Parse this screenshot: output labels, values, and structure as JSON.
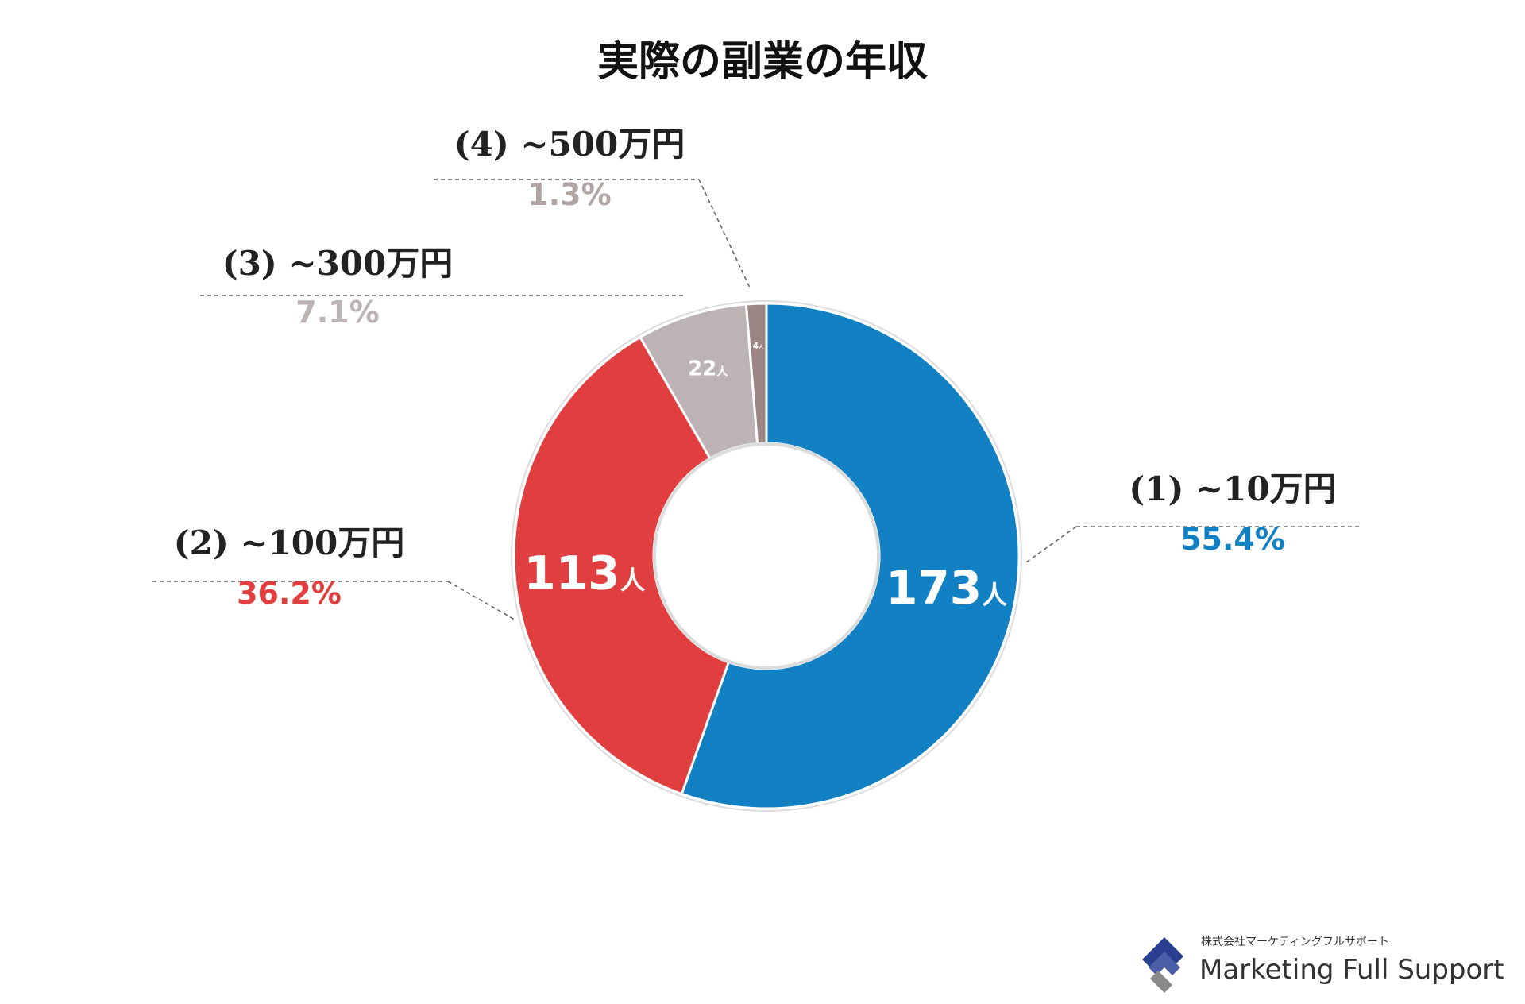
{
  "chart_data": {
    "type": "pie",
    "donut": true,
    "title": "実際の副業の年収",
    "unit_suffix": "人",
    "slices": [
      {
        "label": "(1) ~10万円",
        "value": 173,
        "percent": "55.4%",
        "color": "#1281c3"
      },
      {
        "label": "(2) ~100万円",
        "value": 113,
        "percent": "36.2%",
        "color": "#e03e3f"
      },
      {
        "label": "(3) ~300万円",
        "value": 22,
        "percent": "7.1%",
        "color": "#beb3b4"
      },
      {
        "label": "(4) ~500万円",
        "value": 4,
        "percent": "1.3%",
        "color": "#9b8685"
      }
    ],
    "percent_label_colors": [
      "#1281c3",
      "#e03e3f",
      "#beb3b4",
      "#b3a4a4"
    ],
    "legend": "none"
  },
  "brand": {
    "company_jp": "株式会社マーケティングフルサポート",
    "company_en": "Marketing Full Support",
    "logo_colors": [
      "#2a3f8f",
      "#8a8a8a"
    ]
  }
}
